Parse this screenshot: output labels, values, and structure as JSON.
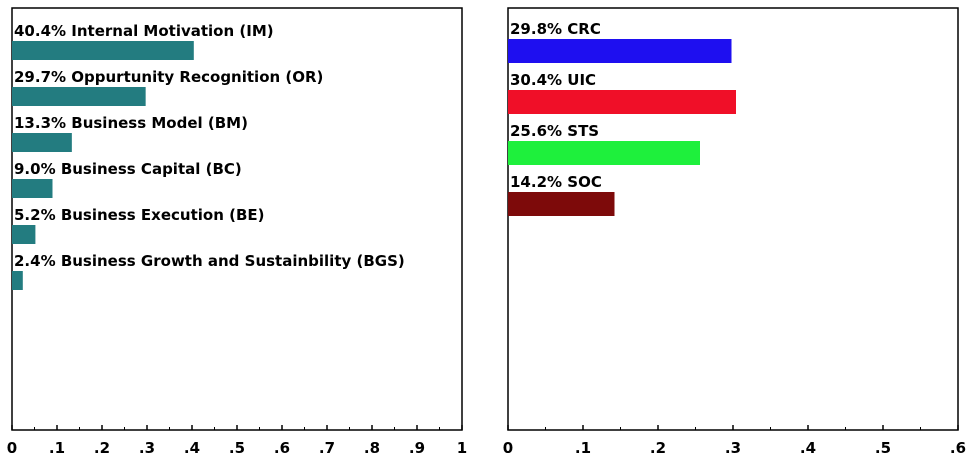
{
  "chart_data": [
    {
      "type": "bar",
      "orientation": "horizontal",
      "categories": [
        "40.4% Internal Motivation (IM)",
        "29.7% Oppurtunity Recognition (OR)",
        "13.3% Business Model (BM)",
        "9.0% Business Capital (BC)",
        "5.2% Business Execution (BE)",
        "2.4% Business Growth and Sustainbility (BGS)"
      ],
      "values": [
        0.404,
        0.297,
        0.133,
        0.09,
        0.052,
        0.024
      ],
      "colors": [
        "#237c80",
        "#237c80",
        "#237c80",
        "#237c80",
        "#237c80",
        "#237c80"
      ],
      "xlim": [
        0,
        1
      ],
      "xticks": [
        0,
        0.1,
        0.2,
        0.3,
        0.4,
        0.5,
        0.6,
        0.7,
        0.8,
        0.9,
        1
      ],
      "xtick_labels": [
        "0",
        ".1",
        ".2",
        ".3",
        ".4",
        ".5",
        ".6",
        ".7",
        ".8",
        ".9",
        "1"
      ],
      "title": "",
      "xlabel": "",
      "ylabel": "",
      "grid": false
    },
    {
      "type": "bar",
      "orientation": "horizontal",
      "categories": [
        "29.8% CRC",
        "30.4% UIC",
        "25.6% STS",
        "14.2% SOC"
      ],
      "values": [
        0.298,
        0.304,
        0.256,
        0.142
      ],
      "colors": [
        "#1e0ff0",
        "#f00f28",
        "#1ef03c",
        "#7d0a0a"
      ],
      "xlim": [
        0,
        0.6
      ],
      "xticks": [
        0,
        0.1,
        0.2,
        0.3,
        0.4,
        0.5,
        0.6
      ],
      "xtick_labels": [
        "0",
        ".1",
        ".2",
        ".3",
        ".4",
        ".5",
        ".6"
      ],
      "title": "",
      "xlabel": "",
      "ylabel": "",
      "grid": false
    }
  ]
}
